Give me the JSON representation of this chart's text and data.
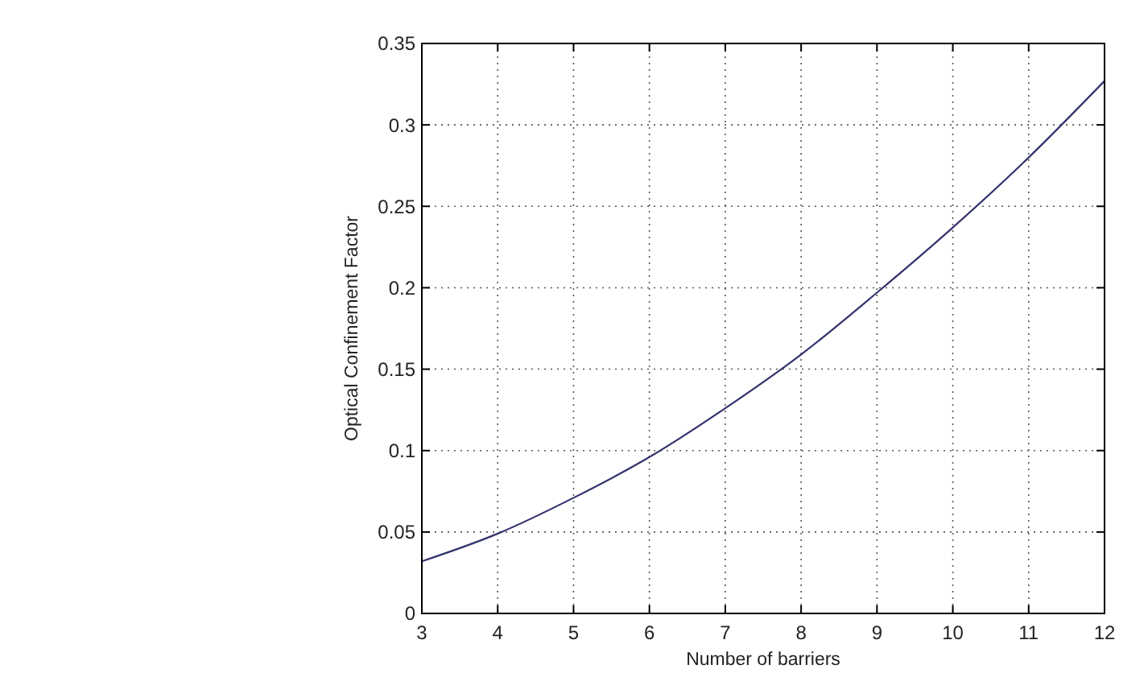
{
  "chart_data": {
    "type": "line",
    "xlabel": "Number of barriers",
    "ylabel": "Optical Confinement Factor",
    "x": [
      3,
      4,
      5,
      6,
      7,
      8,
      9,
      10,
      11,
      12
    ],
    "series": [
      {
        "color": "#33336e",
        "values": [
          0.032,
          0.049,
          0.071,
          0.096,
          0.126,
          0.159,
          0.197,
          0.237,
          0.28,
          0.327
        ]
      }
    ],
    "xlim": [
      3,
      12
    ],
    "xticks": [
      3,
      4,
      5,
      6,
      7,
      8,
      9,
      10,
      11,
      12
    ],
    "ylim": [
      0,
      0.35
    ],
    "yticks": [
      0,
      0.05,
      0.1,
      0.15,
      0.2,
      0.25,
      0.3,
      0.35
    ],
    "grid": true
  }
}
